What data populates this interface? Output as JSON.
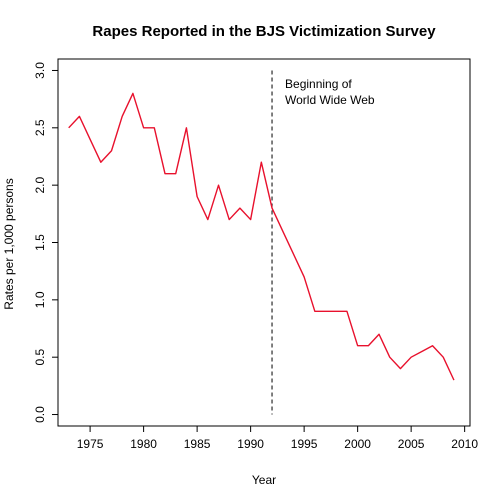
{
  "chart_data": {
    "type": "line",
    "title": "Rapes Reported in the BJS Victimization Survey",
    "xlabel": "Year",
    "ylabel": "Rates per 1,000 persons",
    "xlim": [
      1972,
      2010.5
    ],
    "ylim": [
      -0.1,
      3.1
    ],
    "x_ticks": [
      1975,
      1980,
      1985,
      1990,
      1995,
      2000,
      2005,
      2010
    ],
    "y_ticks": [
      0.0,
      0.5,
      1.0,
      1.5,
      2.0,
      2.5,
      3.0
    ],
    "y_tick_labels": [
      "0.0",
      "0.5",
      "1.0",
      "1.5",
      "2.0",
      "2.5",
      "3.0"
    ],
    "grid": false,
    "legend": "none",
    "series": [
      {
        "color": "#e8112d",
        "x": [
          1973,
          1974,
          1975,
          1976,
          1977,
          1978,
          1979,
          1980,
          1981,
          1982,
          1983,
          1984,
          1985,
          1986,
          1987,
          1988,
          1989,
          1990,
          1991,
          1992,
          1993,
          1994,
          1995,
          1996,
          1997,
          1998,
          1999,
          2000,
          2001,
          2002,
          2003,
          2004,
          2005,
          2006,
          2007,
          2008,
          2009
        ],
        "y": [
          2.5,
          2.6,
          2.4,
          2.2,
          2.3,
          2.6,
          2.8,
          2.5,
          2.5,
          2.1,
          2.1,
          2.5,
          1.9,
          1.7,
          2.0,
          1.7,
          1.8,
          1.7,
          2.2,
          1.8,
          1.6,
          1.4,
          1.2,
          0.9,
          0.9,
          0.9,
          0.9,
          0.6,
          0.6,
          0.7,
          0.5,
          0.4,
          0.5,
          0.55,
          0.6,
          0.5,
          0.3
        ]
      }
    ],
    "annotation": {
      "text_lines": [
        "Beginning of",
        "World Wide Web"
      ],
      "x": 1992,
      "y_range": [
        0.0,
        3.0
      ],
      "line_style": "dashed"
    }
  }
}
